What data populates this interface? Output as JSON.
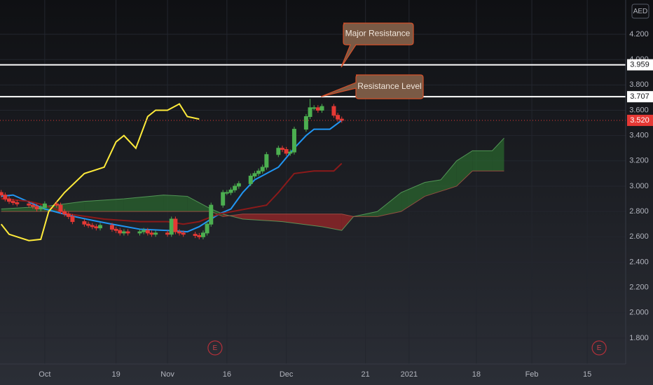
{
  "chart_data": {
    "type": "candlestick",
    "currency": "AED",
    "xlim": [
      -11.3,
      146.7
    ],
    "ylim": [
      1.595,
      4.471
    ],
    "xticks": [
      {
        "value": 0,
        "label": "Oct"
      },
      {
        "value": 18,
        "label": "19"
      },
      {
        "value": 31,
        "label": "Nov"
      },
      {
        "value": 46,
        "label": "16"
      },
      {
        "value": 61,
        "label": "Dec"
      },
      {
        "value": 81,
        "label": "21"
      },
      {
        "value": 92,
        "label": "2021"
      },
      {
        "value": 109,
        "label": "18"
      },
      {
        "value": 123,
        "label": "Feb"
      },
      {
        "value": 137,
        "label": "15"
      }
    ],
    "yticks": [
      {
        "value": 1.8,
        "label": "1.800"
      },
      {
        "value": 2.0,
        "label": "2.000"
      },
      {
        "value": 2.2,
        "label": "2.200"
      },
      {
        "value": 2.4,
        "label": "2.400"
      },
      {
        "value": 2.6,
        "label": "2.600"
      },
      {
        "value": 2.8,
        "label": "2.800"
      },
      {
        "value": 3.0,
        "label": "3.000"
      },
      {
        "value": 3.2,
        "label": "3.200"
      },
      {
        "value": 3.4,
        "label": "3.400"
      },
      {
        "value": 3.6,
        "label": "3.600"
      },
      {
        "value": 3.8,
        "label": "3.800"
      },
      {
        "value": 4.0,
        "label": "4.000"
      },
      {
        "value": 4.2,
        "label": "4.200"
      }
    ],
    "grid": true,
    "up_color": "#4caf50",
    "down_color": "#e53935",
    "candles": {
      "x": [
        -11,
        -10,
        -9,
        -8,
        -7,
        -4,
        -3,
        -2,
        -1,
        0,
        3,
        4,
        5,
        6,
        7,
        10,
        11,
        12,
        13,
        14,
        17,
        18,
        19,
        20,
        21,
        24,
        25,
        26,
        27,
        28,
        31,
        32,
        33,
        34,
        35,
        38,
        39,
        40,
        41,
        42,
        45,
        46,
        47,
        48,
        49,
        52,
        53,
        54,
        55,
        56,
        59,
        60,
        61,
        62,
        63,
        66,
        67,
        68,
        69,
        70,
        73,
        74,
        75
      ],
      "open": [
        2.95,
        2.93,
        2.9,
        2.88,
        2.87,
        2.86,
        2.85,
        2.84,
        2.82,
        2.83,
        2.86,
        2.85,
        2.8,
        2.78,
        2.76,
        2.72,
        2.7,
        2.69,
        2.68,
        2.67,
        2.69,
        2.66,
        2.65,
        2.63,
        2.64,
        2.63,
        2.64,
        2.65,
        2.63,
        2.62,
        2.63,
        2.62,
        2.74,
        2.64,
        2.63,
        2.62,
        2.61,
        2.6,
        2.63,
        2.7,
        2.85,
        2.95,
        2.95,
        2.97,
        3.0,
        3.02,
        3.08,
        3.1,
        3.12,
        3.15,
        3.25,
        3.3,
        3.29,
        3.26,
        3.27,
        3.45,
        3.55,
        3.62,
        3.62,
        3.6,
        3.63,
        3.56,
        3.53
      ],
      "high": [
        2.97,
        2.95,
        2.92,
        2.9,
        2.89,
        2.88,
        2.87,
        2.86,
        2.85,
        2.88,
        2.88,
        2.87,
        2.82,
        2.8,
        2.78,
        2.74,
        2.72,
        2.71,
        2.7,
        2.71,
        2.71,
        2.68,
        2.67,
        2.66,
        2.66,
        2.66,
        2.67,
        2.67,
        2.65,
        2.65,
        2.65,
        2.76,
        2.76,
        2.66,
        2.65,
        2.64,
        2.63,
        2.65,
        2.72,
        2.87,
        2.97,
        2.97,
        2.99,
        3.02,
        3.04,
        3.1,
        3.12,
        3.14,
        3.17,
        3.27,
        3.32,
        3.32,
        3.31,
        3.29,
        3.47,
        3.57,
        3.69,
        3.64,
        3.64,
        3.65,
        3.65,
        3.58,
        3.55
      ],
      "low": [
        2.91,
        2.88,
        2.86,
        2.85,
        2.84,
        2.83,
        2.82,
        2.8,
        2.8,
        2.81,
        2.83,
        2.78,
        2.76,
        2.74,
        2.7,
        2.68,
        2.67,
        2.66,
        2.65,
        2.65,
        2.64,
        2.63,
        2.61,
        2.61,
        2.61,
        2.61,
        2.62,
        2.61,
        2.6,
        2.6,
        2.6,
        2.6,
        2.62,
        2.61,
        2.6,
        2.59,
        2.58,
        2.58,
        2.61,
        2.68,
        2.83,
        2.93,
        2.93,
        2.95,
        2.98,
        3.0,
        3.06,
        3.08,
        3.1,
        3.13,
        3.23,
        3.27,
        3.24,
        3.24,
        3.25,
        3.43,
        3.53,
        3.6,
        3.58,
        3.58,
        3.54,
        3.51,
        3.5
      ],
      "close": [
        2.93,
        2.9,
        2.88,
        2.87,
        2.86,
        2.85,
        2.84,
        2.82,
        2.83,
        2.86,
        2.85,
        2.8,
        2.78,
        2.76,
        2.72,
        2.7,
        2.69,
        2.68,
        2.67,
        2.69,
        2.66,
        2.65,
        2.63,
        2.64,
        2.63,
        2.64,
        2.65,
        2.63,
        2.62,
        2.63,
        2.62,
        2.74,
        2.64,
        2.63,
        2.62,
        2.61,
        2.6,
        2.63,
        2.7,
        2.85,
        2.95,
        2.95,
        2.97,
        3.0,
        3.02,
        3.08,
        3.1,
        3.12,
        3.15,
        3.25,
        3.3,
        3.29,
        3.26,
        3.27,
        3.45,
        3.55,
        3.62,
        3.62,
        3.6,
        3.63,
        3.56,
        3.53,
        3.52
      ]
    },
    "lines": [
      {
        "color": "#2196f3",
        "x": [
          -11,
          -8,
          0,
          6,
          12,
          17,
          24,
          31,
          36,
          39,
          44,
          47,
          50,
          53,
          56,
          59,
          63,
          66,
          68,
          72,
          75
        ],
        "values": [
          2.92,
          2.93,
          2.82,
          2.77,
          2.73,
          2.7,
          2.66,
          2.65,
          2.64,
          2.68,
          2.78,
          2.82,
          2.95,
          3.05,
          3.1,
          3.15,
          3.3,
          3.4,
          3.45,
          3.45,
          3.52
        ]
      },
      {
        "color": "#8b1a1a",
        "x": [
          -11,
          -4,
          0,
          6,
          15,
          24,
          31,
          35,
          39,
          44,
          56,
          59,
          63,
          68,
          73,
          75
        ],
        "values": [
          2.9,
          2.88,
          2.85,
          2.78,
          2.74,
          2.72,
          2.72,
          2.7,
          2.72,
          2.78,
          2.85,
          2.95,
          3.1,
          3.12,
          3.12,
          3.18
        ]
      },
      {
        "color": "#ffeb3b",
        "x": [
          -11,
          -9,
          -4,
          -1,
          1,
          5,
          10,
          15,
          18,
          20,
          23,
          26,
          28,
          31,
          34,
          36,
          39
        ],
        "values": [
          2.7,
          2.62,
          2.57,
          2.58,
          2.8,
          2.95,
          3.1,
          3.15,
          3.35,
          3.4,
          3.3,
          3.55,
          3.6,
          3.6,
          3.65,
          3.55,
          3.53
        ]
      }
    ],
    "cloud": {
      "up_color": "#2e7d32",
      "down_color": "#c62828",
      "x": [
        -11,
        0,
        10,
        20,
        30,
        36,
        42,
        45,
        50,
        60,
        70,
        75,
        78,
        84,
        90,
        96,
        100,
        104,
        108,
        113,
        116
      ],
      "span_a": [
        2.82,
        2.84,
        2.88,
        2.9,
        2.93,
        2.92,
        2.82,
        2.78,
        2.74,
        2.72,
        2.68,
        2.65,
        2.76,
        2.8,
        2.95,
        3.03,
        3.05,
        3.2,
        3.28,
        3.28,
        3.38
      ],
      "span_b": [
        2.8,
        2.8,
        2.8,
        2.8,
        2.8,
        2.8,
        2.8,
        2.76,
        2.78,
        2.78,
        2.78,
        2.78,
        2.76,
        2.76,
        2.8,
        2.92,
        2.96,
        3.0,
        3.12,
        3.12,
        3.12
      ]
    },
    "levels": [
      3.959,
      3.707
    ],
    "last_price": {
      "value": 3.52,
      "label": "3.520"
    },
    "annotations": [
      "Major Resistance",
      "Resistance Level"
    ],
    "events": {
      "x": [
        43,
        140
      ],
      "label": "E"
    }
  }
}
